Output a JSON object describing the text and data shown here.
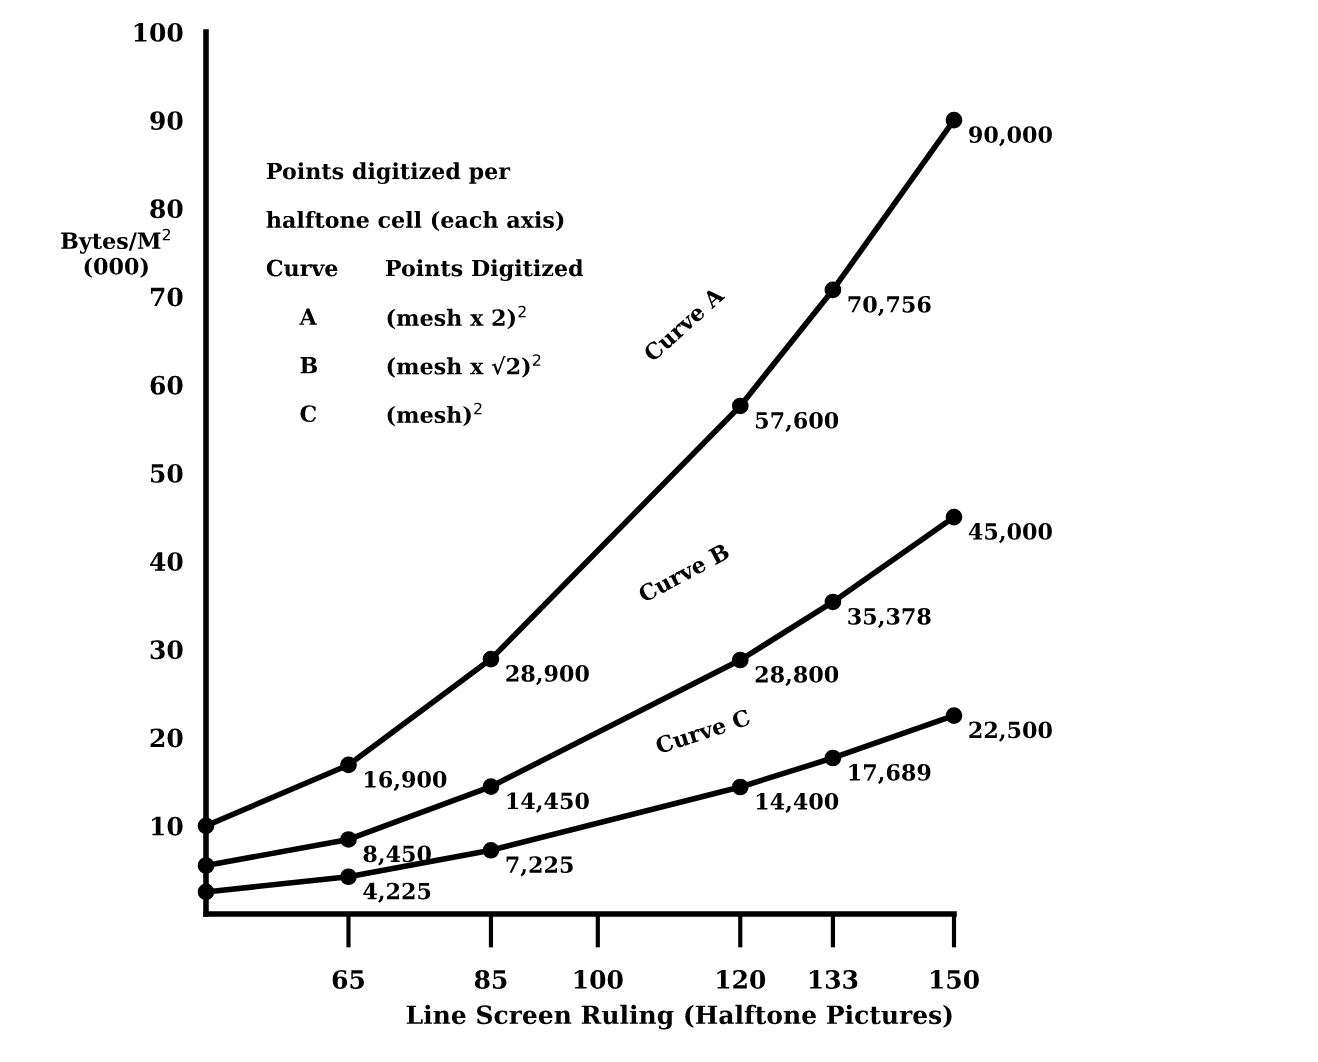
{
  "chart_data": {
    "type": "line",
    "xlabel": "Line Screen Ruling (Halftone Pictures)",
    "ylabel": "Bytes/M$^{2}$\n(000)",
    "x": [
      45,
      65,
      85,
      120,
      133,
      150
    ],
    "xlim": [
      45,
      150
    ],
    "xticks": [
      65,
      85,
      100,
      120,
      133,
      150
    ],
    "ylim": [
      0,
      100
    ],
    "yticks": [
      10,
      20,
      30,
      40,
      50,
      60,
      70,
      80,
      90,
      100
    ],
    "grid": false,
    "legend": false,
    "marker": "circle",
    "line_style": "solid",
    "series": [
      {
        "color": "#000000",
        "values": [
          10,
          16.9,
          28.9,
          57.6,
          70.756,
          90.0
        ]
      },
      {
        "color": "#000000",
        "values": [
          5.5,
          8.45,
          14.45,
          28.8,
          35.378,
          45.0
        ]
      },
      {
        "color": "#000000",
        "values": [
          2.5,
          4.225,
          7.225,
          14.4,
          17.689,
          22.5
        ]
      }
    ],
    "annotations": [
      {
        "text": "16,900",
        "x": 65,
        "y": 16.9
      },
      {
        "text": "28,900",
        "x": 85,
        "y": 28.9
      },
      {
        "text": "57,600",
        "x": 120,
        "y": 57.6
      },
      {
        "text": "70,756",
        "x": 133,
        "y": 70.756
      },
      {
        "text": "90,000",
        "x": 150,
        "y": 90.0
      },
      {
        "text": "8,450",
        "x": 65,
        "y": 8.45
      },
      {
        "text": "14,450",
        "x": 85,
        "y": 14.45
      },
      {
        "text": "28,800",
        "x": 120,
        "y": 28.8
      },
      {
        "text": "35,378",
        "x": 133,
        "y": 35.378
      },
      {
        "text": "45,000",
        "x": 150,
        "y": 45.0
      },
      {
        "text": "4,225",
        "x": 65,
        "y": 4.225
      },
      {
        "text": "7,225",
        "x": 85,
        "y": 7.225
      },
      {
        "text": "14,400",
        "x": 120,
        "y": 14.4
      },
      {
        "text": "17,689",
        "x": 133,
        "y": 17.689
      },
      {
        "text": "22,500",
        "x": 150,
        "y": 22.5
      },
      "Curve A",
      "Curve B",
      "Curve C",
      "Points digitized per",
      "halftone cell (each axis)",
      "Curve      Points Digitized",
      "A",
      "B",
      "C",
      "(mesh x 2)$^{2}$",
      "(mesh x √2)$^{2}$",
      "(mesh)$^{2}$"
    ]
  }
}
